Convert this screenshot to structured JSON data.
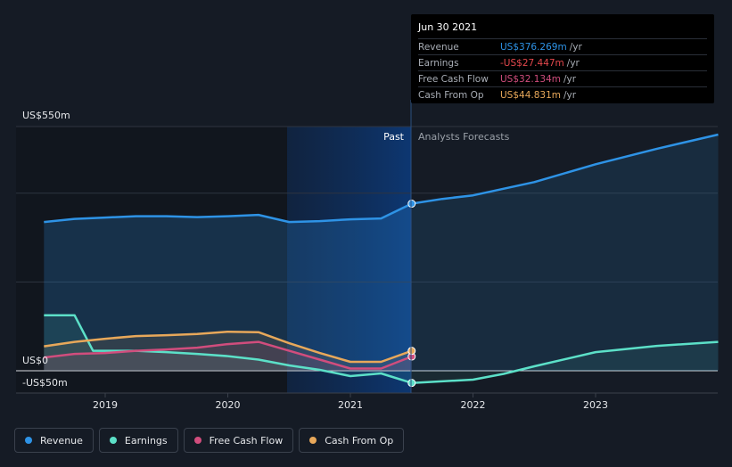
{
  "chart_data": {
    "type": "line",
    "y_axis": {
      "top_label": "US$550m",
      "zero_label": "US$0",
      "bottom_label": "-US$50m",
      "ylim": [
        -50,
        550
      ]
    },
    "x_ticks": [
      "2019",
      "2020",
      "2021",
      "2022",
      "2023"
    ],
    "region_labels": {
      "past": "Past",
      "forecast": "Analysts Forecasts"
    },
    "series": [
      {
        "name": "Revenue",
        "color": "#2e93e6",
        "points": [
          [
            2018.5,
            335
          ],
          [
            2018.75,
            342
          ],
          [
            2019.0,
            345
          ],
          [
            2019.25,
            348
          ],
          [
            2019.5,
            348
          ],
          [
            2019.75,
            346
          ],
          [
            2020.0,
            348
          ],
          [
            2020.25,
            351
          ],
          [
            2020.5,
            335
          ],
          [
            2020.75,
            337
          ],
          [
            2021.0,
            341
          ],
          [
            2021.25,
            343
          ],
          [
            2021.5,
            376.3
          ]
        ]
      },
      {
        "name": "Revenue forecast",
        "color": "#2e93e6",
        "points": [
          [
            2021.5,
            376.3
          ],
          [
            2021.75,
            387
          ],
          [
            2022.0,
            395
          ],
          [
            2022.5,
            425
          ],
          [
            2023.0,
            465
          ],
          [
            2023.5,
            500
          ],
          [
            2024.0,
            532
          ]
        ]
      },
      {
        "name": "Earnings",
        "color": "#5ce0c8",
        "points": [
          [
            2018.5,
            125
          ],
          [
            2018.75,
            125
          ],
          [
            2018.9,
            45
          ],
          [
            2019.25,
            45
          ],
          [
            2019.5,
            42
          ],
          [
            2019.75,
            38
          ],
          [
            2020.0,
            33
          ],
          [
            2020.25,
            25
          ],
          [
            2020.5,
            12
          ],
          [
            2020.75,
            2
          ],
          [
            2021.0,
            -12
          ],
          [
            2021.25,
            -6
          ],
          [
            2021.5,
            -27.4
          ]
        ]
      },
      {
        "name": "Earnings forecast",
        "color": "#5ce0c8",
        "points": [
          [
            2021.5,
            -27.4
          ],
          [
            2022.0,
            -20
          ],
          [
            2022.25,
            -7
          ],
          [
            2022.5,
            10
          ],
          [
            2023.0,
            42
          ],
          [
            2023.5,
            56
          ],
          [
            2024.0,
            65
          ]
        ]
      },
      {
        "name": "Free Cash Flow",
        "color": "#d14d7d",
        "points": [
          [
            2018.5,
            30
          ],
          [
            2018.75,
            38
          ],
          [
            2019.0,
            40
          ],
          [
            2019.25,
            45
          ],
          [
            2019.5,
            48
          ],
          [
            2019.75,
            52
          ],
          [
            2020.0,
            60
          ],
          [
            2020.25,
            65
          ],
          [
            2020.5,
            45
          ],
          [
            2020.75,
            25
          ],
          [
            2021.0,
            5
          ],
          [
            2021.25,
            5
          ],
          [
            2021.5,
            32.1
          ]
        ]
      },
      {
        "name": "Cash From Op",
        "color": "#e8a85a",
        "points": [
          [
            2018.5,
            55
          ],
          [
            2018.75,
            65
          ],
          [
            2019.0,
            72
          ],
          [
            2019.25,
            78
          ],
          [
            2019.5,
            80
          ],
          [
            2019.75,
            83
          ],
          [
            2020.0,
            88
          ],
          [
            2020.25,
            87
          ],
          [
            2020.5,
            62
          ],
          [
            2020.75,
            40
          ],
          [
            2021.0,
            20
          ],
          [
            2021.25,
            20
          ],
          [
            2021.5,
            44.8
          ]
        ]
      }
    ]
  },
  "tooltip": {
    "date": "Jun 30 2021",
    "rows": [
      {
        "label": "Revenue",
        "value": "US$376.269m",
        "unit": "/yr",
        "color": "#2e93e6"
      },
      {
        "label": "Earnings",
        "value": "-US$27.447m",
        "unit": "/yr",
        "color": "#e5484d"
      },
      {
        "label": "Free Cash Flow",
        "value": "US$32.134m",
        "unit": "/yr",
        "color": "#d14d7d"
      },
      {
        "label": "Cash From Op",
        "value": "US$44.831m",
        "unit": "/yr",
        "color": "#e8a85a"
      }
    ]
  },
  "legend": [
    {
      "label": "Revenue",
      "color": "#2e93e6"
    },
    {
      "label": "Earnings",
      "color": "#5ce0c8"
    },
    {
      "label": "Free Cash Flow",
      "color": "#d14d7d"
    },
    {
      "label": "Cash From Op",
      "color": "#e8a85a"
    }
  ]
}
